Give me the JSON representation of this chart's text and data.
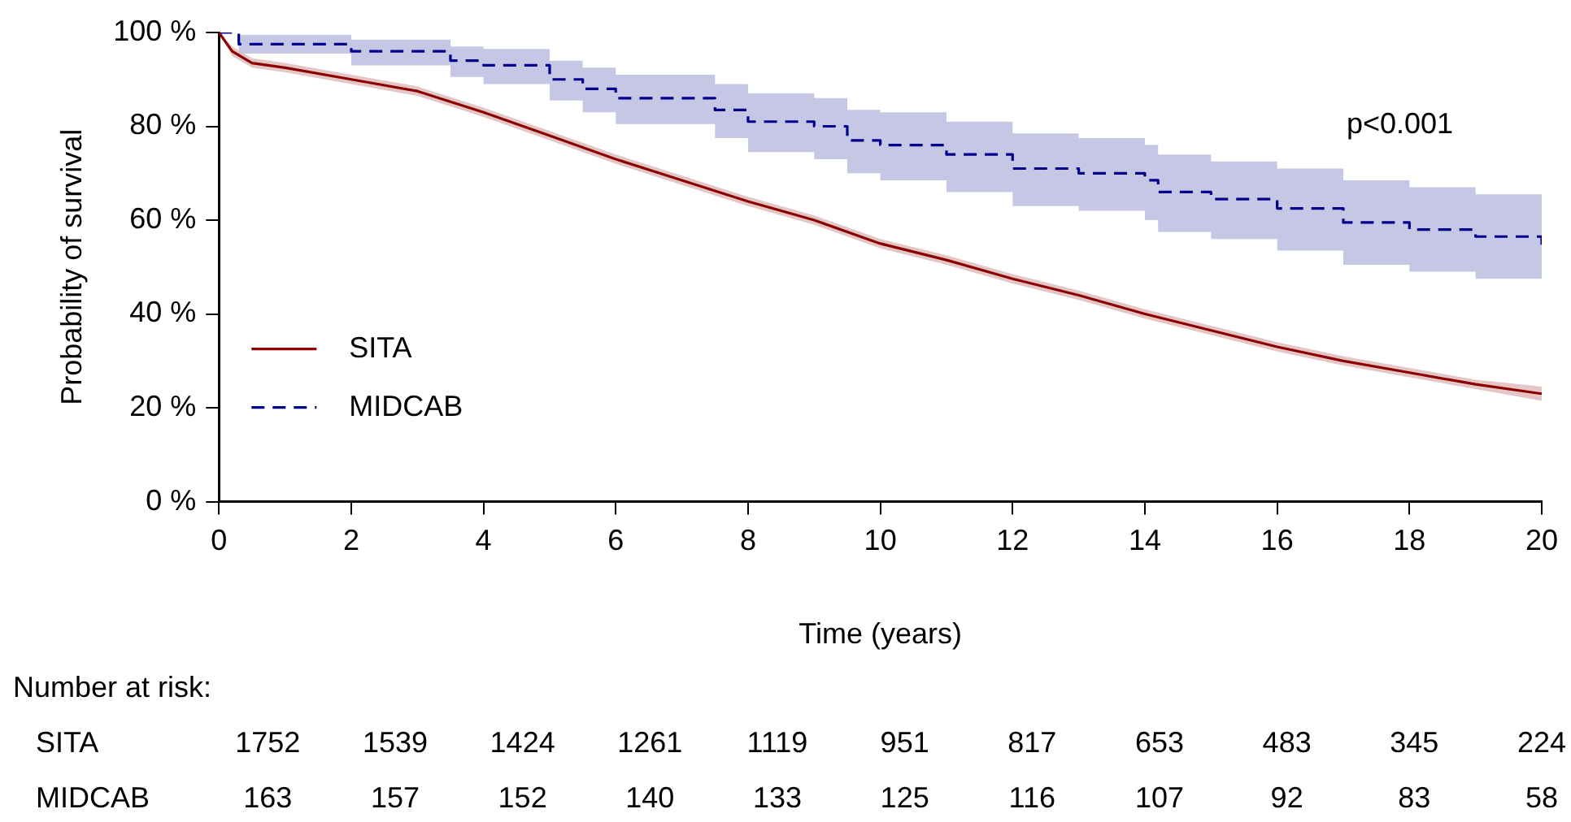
{
  "chart_data": {
    "type": "step",
    "xlabel": "Time (years)",
    "ylabel": "Probability of survival",
    "xlim": [
      0,
      20
    ],
    "xticks": [
      0,
      2,
      4,
      6,
      8,
      10,
      12,
      14,
      16,
      18,
      20
    ],
    "ylim": [
      0,
      100
    ],
    "yticks": [
      {
        "value": 0,
        "label": "0 %"
      },
      {
        "value": 20,
        "label": "20 %"
      },
      {
        "value": 40,
        "label": "40 %"
      },
      {
        "value": 60,
        "label": "60 %"
      },
      {
        "value": 80,
        "label": "80 %"
      },
      {
        "value": 100,
        "label": "100 %"
      }
    ],
    "grid": false,
    "legend": "bottom left",
    "marker": "none",
    "series": [
      {
        "name": "SITA",
        "type": "line",
        "color": "#8b0000",
        "line_style": "solid",
        "x": [
          0,
          0.2,
          0.5,
          1,
          2,
          3,
          4,
          5,
          6,
          7,
          8,
          9,
          10,
          11,
          12,
          13,
          14,
          15,
          16,
          17,
          18,
          19,
          20
        ],
        "values": [
          100,
          96,
          93.5,
          92.5,
          90,
          87.5,
          83,
          78,
          73,
          68.5,
          64,
          60,
          55,
          51.5,
          47.5,
          44,
          40,
          36.5,
          33,
          30,
          27.5,
          25,
          23
        ],
        "lower": [
          100,
          95,
          92.5,
          91.5,
          89,
          86.5,
          82,
          77,
          72,
          67.5,
          63,
          59,
          54,
          50.5,
          46.5,
          43,
          39,
          35.5,
          32,
          29,
          26.5,
          24,
          21.5
        ],
        "upper": [
          100,
          97,
          94.5,
          93.5,
          91,
          88.5,
          84,
          79,
          74,
          69.5,
          65,
          61,
          56,
          52.5,
          48.5,
          45,
          41,
          37.5,
          34,
          31,
          28.5,
          26,
          24.5
        ]
      },
      {
        "name": "MIDCAB",
        "color": "#00008b",
        "line_style": "dashed",
        "x": [
          0,
          0.3,
          2,
          3.5,
          4,
          5,
          5.5,
          6,
          7.5,
          8,
          9,
          9.5,
          10,
          11,
          12,
          13,
          14,
          14.2,
          15,
          16,
          17,
          18,
          19,
          20
        ],
        "values": [
          100,
          97.5,
          96,
          94,
          93,
          90,
          88,
          86,
          83.5,
          81,
          80,
          77,
          76,
          74,
          71,
          70,
          68.5,
          66,
          64.5,
          62.5,
          59.5,
          58,
          56.5,
          53.5
        ],
        "lower": [
          100,
          95.5,
          93,
          90.5,
          89,
          85.5,
          83,
          80.5,
          77.5,
          74.5,
          73,
          70,
          68.5,
          66,
          63,
          62,
          60,
          57.5,
          56,
          53.5,
          50.5,
          49,
          47.5,
          46
        ],
        "upper": [
          100,
          99.5,
          98.5,
          97,
          96.5,
          94,
          92.5,
          91,
          89,
          87,
          86,
          83.5,
          83,
          81,
          78.5,
          77.5,
          76,
          74,
          72.5,
          71,
          68.5,
          67,
          65.5,
          61.5
        ]
      }
    ],
    "annotations": [
      "p<0.001",
      "Number at risk:",
      "SITA 1752 1539 1424 1261 1119 951 817 653 483 345 224",
      "MIDCAB 163 157 152 140 133 125 116 107 92 83 58"
    ]
  }
}
